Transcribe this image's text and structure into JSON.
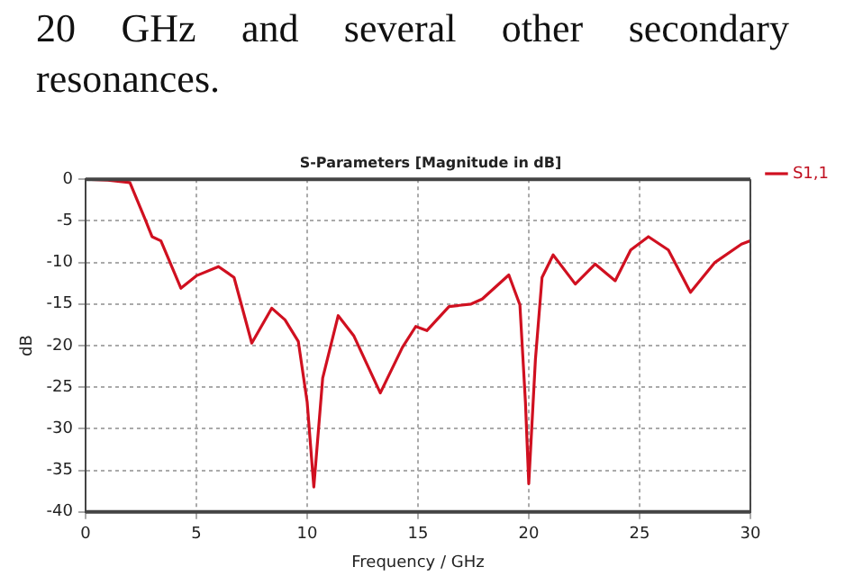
{
  "chart_data": {
    "type": "line",
    "title": "S-Parameters [Magnitude in dB]",
    "xlabel": "Frequency / GHz",
    "ylabel": "dB",
    "annotations": [
      "20 GHz and several other secondary resonances."
    ],
    "series": [
      {
        "name": "S1,1",
        "color": "#d01020",
        "x": [
          0,
          1,
          2,
          2.7,
          3.0,
          3.4,
          3.7,
          4.3,
          5,
          6,
          6.7,
          7.5,
          8.4,
          9,
          9.6,
          10,
          10.3,
          10.7,
          11.4,
          12.1,
          13.3,
          14.3,
          14.9,
          15.4,
          16.4,
          17.4,
          17.9,
          19.1,
          19.6,
          19.85,
          20,
          20.3,
          20.6,
          21.1,
          22.1,
          23,
          23.9,
          24.6,
          25.4,
          26.3,
          27.3,
          28.4,
          29.6,
          30
        ],
        "values": [
          0,
          -0.1,
          -0.4,
          -4.9,
          -6.9,
          -7.4,
          -9.3,
          -13.1,
          -11.6,
          -10.5,
          -11.8,
          -19.7,
          -15.5,
          -16.9,
          -19.5,
          -26.8,
          -37,
          -23.9,
          -16.4,
          -18.8,
          -25.7,
          -20.2,
          -17.7,
          -18.2,
          -15.3,
          -15,
          -14.4,
          -11.5,
          -15.1,
          -26.8,
          -36.6,
          -21.7,
          -11.8,
          -9.1,
          -12.6,
          -10.2,
          -12.2,
          -8.5,
          -6.9,
          -8.5,
          -13.6,
          -10,
          -7.8,
          -7.4
        ]
      }
    ],
    "xlim": [
      0,
      30
    ],
    "xticks": [
      0,
      5,
      10,
      15,
      20,
      25,
      30
    ],
    "ylim": [
      -40,
      0
    ],
    "yticks": [
      -40,
      -35,
      -30,
      -25,
      -20,
      -15,
      -10,
      -5,
      0
    ],
    "grid": true,
    "legend": "top right",
    "marker": "none",
    "line_style": "solid"
  }
}
